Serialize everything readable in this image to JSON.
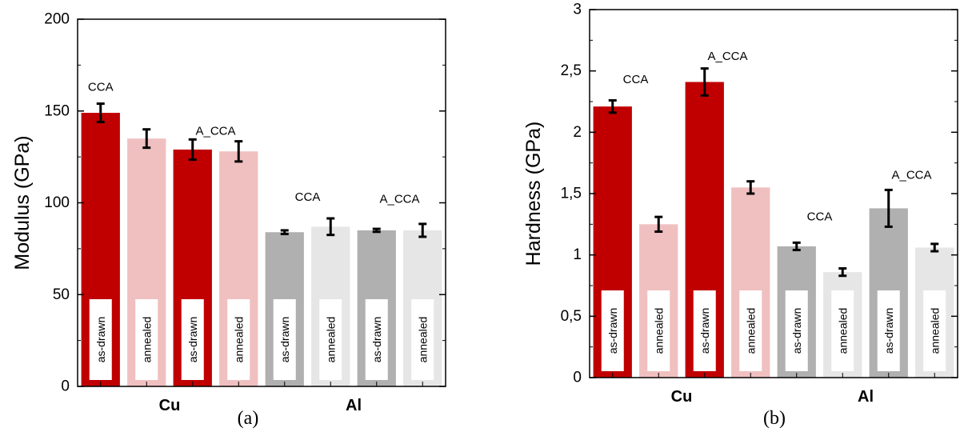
{
  "chart_data": [
    {
      "type": "bar",
      "caption": "(a)",
      "ylabel": "Modulus (GPa)",
      "ylim": [
        0,
        200
      ],
      "yticks": [
        0,
        50,
        100,
        150,
        200
      ],
      "ytick_labels": [
        "0",
        "50",
        "100",
        "150",
        "200"
      ],
      "groups": [
        {
          "label": "Cu",
          "bar_index_range": [
            0,
            3
          ]
        },
        {
          "label": "Al",
          "bar_index_range": [
            4,
            7
          ]
        }
      ],
      "annotations": [
        {
          "text": "CCA",
          "near_bar": 0,
          "value": 163
        },
        {
          "text": "A_CCA",
          "near_bar": 2.5,
          "value": 139
        },
        {
          "text": "CCA",
          "near_bar": 4.5,
          "value": 103
        },
        {
          "text": "A_CCA",
          "near_bar": 6.5,
          "value": 102
        }
      ],
      "bars": [
        {
          "label": "as-drawn",
          "value": 149,
          "error": 5,
          "color": "#c00000"
        },
        {
          "label": "annealed",
          "value": 135,
          "error": 5,
          "color": "#f0c0c0"
        },
        {
          "label": "as-drawn",
          "value": 129,
          "error": 5.5,
          "color": "#c00000"
        },
        {
          "label": "annealed",
          "value": 128,
          "error": 5.5,
          "color": "#f0c0c0"
        },
        {
          "label": "as-drawn",
          "value": 84,
          "error": 1,
          "color": "#b0b0b0"
        },
        {
          "label": "annealed",
          "value": 87,
          "error": 4.5,
          "color": "#e6e6e6"
        },
        {
          "label": "as-drawn",
          "value": 85,
          "error": 0.8,
          "color": "#b0b0b0"
        },
        {
          "label": "annealed",
          "value": 85,
          "error": 3.5,
          "color": "#e6e6e6"
        }
      ]
    },
    {
      "type": "bar",
      "caption": "(b)",
      "ylabel": "Hardness (GPa)",
      "ylim": [
        0,
        3
      ],
      "yticks": [
        0,
        0.5,
        1,
        1.5,
        2,
        2.5,
        3
      ],
      "ytick_labels": [
        "0",
        "0,5",
        "1",
        "1,5",
        "2",
        "2,5",
        "3"
      ],
      "groups": [
        {
          "label": "Cu",
          "bar_index_range": [
            0,
            3
          ]
        },
        {
          "label": "Al",
          "bar_index_range": [
            4,
            7
          ]
        }
      ],
      "annotations": [
        {
          "text": "CCA",
          "near_bar": 0.5,
          "value": 2.43
        },
        {
          "text": "A_CCA",
          "near_bar": 2.5,
          "value": 2.62
        },
        {
          "text": "CCA",
          "near_bar": 4.5,
          "value": 1.31
        },
        {
          "text": "A_CCA",
          "near_bar": 6.5,
          "value": 1.65
        }
      ],
      "bars": [
        {
          "label": "as-drawn",
          "value": 2.21,
          "error": 0.05,
          "color": "#c00000"
        },
        {
          "label": "annealed",
          "value": 1.25,
          "error": 0.06,
          "color": "#f0c0c0"
        },
        {
          "label": "as-drawn",
          "value": 2.41,
          "error": 0.11,
          "color": "#c00000"
        },
        {
          "label": "annealed",
          "value": 1.55,
          "error": 0.05,
          "color": "#f0c0c0"
        },
        {
          "label": "as-drawn",
          "value": 1.07,
          "error": 0.03,
          "color": "#b0b0b0"
        },
        {
          "label": "annealed",
          "value": 0.86,
          "error": 0.03,
          "color": "#e6e6e6"
        },
        {
          "label": "as-drawn",
          "value": 1.38,
          "error": 0.15,
          "color": "#b0b0b0"
        },
        {
          "label": "annealed",
          "value": 1.06,
          "error": 0.03,
          "color": "#e6e6e6"
        }
      ]
    }
  ]
}
